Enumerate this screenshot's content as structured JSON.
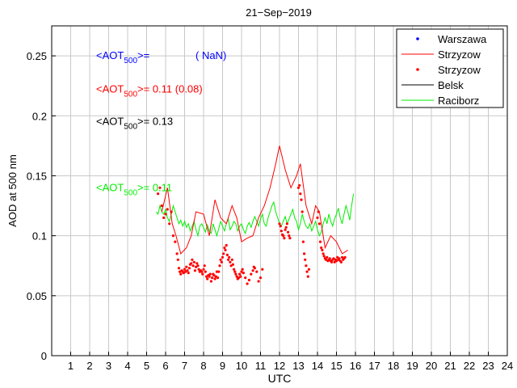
{
  "chart_data": {
    "type": "line",
    "title": "21−Sep−2019",
    "xlabel": "UTC",
    "ylabel": "AOD at 500 nm",
    "xlim": [
      0,
      24
    ],
    "ylim": [
      0,
      0.275
    ],
    "xticks": [
      {
        "value": 1,
        "label": "1"
      },
      {
        "value": 2,
        "label": "2"
      },
      {
        "value": 3,
        "label": "3"
      },
      {
        "value": 4,
        "label": "4"
      },
      {
        "value": 5,
        "label": "5"
      },
      {
        "value": 6,
        "label": "6"
      },
      {
        "value": 7,
        "label": "7"
      },
      {
        "value": 8,
        "label": "8"
      },
      {
        "value": 9,
        "label": "9"
      },
      {
        "value": 10,
        "label": "10"
      },
      {
        "value": 11,
        "label": "11"
      },
      {
        "value": 12,
        "label": "12"
      },
      {
        "value": 13,
        "label": "13"
      },
      {
        "value": 14,
        "label": "14"
      },
      {
        "value": 15,
        "label": "15"
      },
      {
        "value": 16,
        "label": "16"
      },
      {
        "value": 17,
        "label": "17"
      },
      {
        "value": 18,
        "label": "18"
      },
      {
        "value": 19,
        "label": "19"
      },
      {
        "value": 20,
        "label": "20"
      },
      {
        "value": 21,
        "label": "21"
      },
      {
        "value": 22,
        "label": "22"
      },
      {
        "value": 23,
        "label": "23"
      },
      {
        "value": 24,
        "label": "24"
      }
    ],
    "yticks": [
      {
        "value": 0,
        "label": "0"
      },
      {
        "value": 0.05,
        "label": "0.05"
      },
      {
        "value": 0.1,
        "label": "0.1"
      },
      {
        "value": 0.15,
        "label": "0.15"
      },
      {
        "value": 0.2,
        "label": "0.2"
      },
      {
        "value": 0.25,
        "label": "0.25"
      }
    ],
    "grid": true,
    "legend_position": "top-right",
    "annotations": [
      {
        "prefix": "<AOT",
        "sub": "500",
        "suffix": ">= ",
        "value": "( NaN)",
        "color": "#0000ff",
        "y": 0.25
      },
      {
        "prefix": "<AOT",
        "sub": "500",
        "suffix": ">= ",
        "value": "0.11 (0.08)",
        "color": "#ff0000",
        "y": 0.222
      },
      {
        "prefix": "<AOT",
        "sub": "500",
        "suffix": ">= ",
        "value": "0.13",
        "color": "#000000",
        "y": 0.195
      },
      {
        "prefix": "<AOT",
        "sub": "500",
        "suffix": ">= ",
        "value": "0.11",
        "color": "#00ee00",
        "y": 0.14
      }
    ],
    "series": [
      {
        "name": "Warszawa",
        "style": "dots",
        "color": "#0000ff",
        "x": [],
        "y": []
      },
      {
        "name": "Strzyzow",
        "style": "line",
        "color": "#ff0000",
        "x": [
          5.8,
          6.1,
          6.35,
          6.55,
          6.8,
          7.1,
          7.35,
          7.6,
          8.0,
          8.3,
          8.6,
          8.9,
          9.2,
          9.5,
          9.75,
          10.0,
          10.3,
          10.6,
          10.9,
          11.2,
          11.5,
          11.8,
          12.0,
          12.3,
          12.6,
          12.9,
          13.1,
          13.4,
          13.7,
          13.9,
          14.1,
          14.4,
          14.7,
          15.0,
          15.3,
          15.6
        ],
        "y": [
          0.12,
          0.14,
          0.11,
          0.1,
          0.085,
          0.09,
          0.1,
          0.12,
          0.118,
          0.1,
          0.13,
          0.115,
          0.11,
          0.125,
          0.115,
          0.095,
          0.098,
          0.1,
          0.115,
          0.125,
          0.14,
          0.16,
          0.175,
          0.155,
          0.14,
          0.15,
          0.16,
          0.125,
          0.11,
          0.125,
          0.12,
          0.09,
          0.1,
          0.095,
          0.085,
          0.088
        ]
      },
      {
        "name": "Strzyzow",
        "style": "dots",
        "color": "#ff0000",
        "x": [
          5.6,
          5.7,
          5.8,
          5.9,
          6.0,
          6.1,
          6.2,
          6.3,
          6.4,
          6.5,
          6.6,
          6.65,
          6.7,
          6.75,
          6.8,
          6.85,
          6.9,
          6.95,
          7.0,
          7.05,
          7.1,
          7.15,
          7.2,
          7.25,
          7.3,
          7.35,
          7.4,
          7.45,
          7.5,
          7.55,
          7.6,
          7.65,
          7.7,
          7.75,
          7.8,
          7.85,
          7.9,
          7.95,
          8.0,
          8.05,
          8.1,
          8.15,
          8.2,
          8.25,
          8.3,
          8.35,
          8.4,
          8.45,
          8.5,
          8.55,
          8.6,
          8.65,
          8.7,
          8.75,
          8.8,
          8.85,
          8.9,
          8.95,
          9.0,
          9.05,
          9.1,
          9.15,
          9.2,
          9.25,
          9.3,
          9.35,
          9.4,
          9.45,
          9.5,
          9.55,
          9.6,
          9.65,
          9.7,
          9.75,
          9.8,
          9.85,
          9.9,
          9.95,
          10.0,
          10.05,
          10.1,
          10.2,
          10.3,
          10.4,
          10.5,
          10.6,
          10.65,
          10.7,
          10.8,
          10.9,
          11.0,
          11.1,
          12.0,
          12.05,
          12.1,
          12.15,
          12.2,
          12.25,
          12.3,
          12.35,
          12.4,
          12.45,
          12.5,
          12.55,
          13.0,
          13.05,
          13.1,
          13.15,
          13.2,
          13.25,
          13.3,
          13.35,
          13.4,
          13.45,
          13.5,
          13.55,
          14.0,
          14.05,
          14.1,
          14.15,
          14.2,
          14.25,
          14.3,
          14.35,
          14.4,
          14.45,
          14.5,
          14.55,
          14.6,
          14.65,
          14.7,
          14.75,
          14.8,
          14.85,
          14.9,
          14.95,
          15.0,
          15.05,
          15.1,
          15.15,
          15.2,
          15.25,
          15.3,
          15.35,
          15.4,
          15.45
        ],
        "y": [
          0.135,
          0.14,
          0.125,
          0.115,
          0.118,
          0.122,
          0.11,
          0.12,
          0.1,
          0.095,
          0.085,
          0.08,
          0.073,
          0.07,
          0.068,
          0.071,
          0.07,
          0.069,
          0.072,
          0.07,
          0.074,
          0.071,
          0.069,
          0.073,
          0.076,
          0.077,
          0.08,
          0.075,
          0.078,
          0.071,
          0.074,
          0.077,
          0.075,
          0.072,
          0.07,
          0.071,
          0.07,
          0.068,
          0.072,
          0.075,
          0.07,
          0.066,
          0.064,
          0.067,
          0.066,
          0.068,
          0.062,
          0.065,
          0.068,
          0.067,
          0.064,
          0.066,
          0.07,
          0.065,
          0.07,
          0.075,
          0.08,
          0.078,
          0.082,
          0.085,
          0.09,
          0.088,
          0.092,
          0.084,
          0.08,
          0.082,
          0.078,
          0.075,
          0.08,
          0.076,
          0.072,
          0.07,
          0.068,
          0.066,
          0.064,
          0.065,
          0.068,
          0.066,
          0.07,
          0.072,
          0.069,
          0.065,
          0.06,
          0.063,
          0.068,
          0.071,
          0.074,
          0.073,
          0.07,
          0.062,
          0.065,
          0.072,
          0.11,
          0.108,
          0.104,
          0.101,
          0.1,
          0.098,
          0.105,
          0.107,
          0.11,
          0.103,
          0.1,
          0.098,
          0.14,
          0.142,
          0.135,
          0.13,
          0.12,
          0.095,
          0.085,
          0.08,
          0.075,
          0.07,
          0.066,
          0.072,
          0.115,
          0.12,
          0.11,
          0.095,
          0.09,
          0.088,
          0.085,
          0.083,
          0.081,
          0.08,
          0.082,
          0.079,
          0.08,
          0.081,
          0.079,
          0.078,
          0.08,
          0.081,
          0.078,
          0.08,
          0.079,
          0.082,
          0.08,
          0.081,
          0.079,
          0.078,
          0.082,
          0.08,
          0.081,
          0.082
        ]
      },
      {
        "name": "Belsk",
        "style": "line",
        "color": "#000000",
        "x": [],
        "y": []
      },
      {
        "name": "Raciborz",
        "style": "line",
        "color": "#00ee00",
        "x": [
          5.5,
          5.6,
          5.7,
          5.8,
          5.9,
          6.0,
          6.1,
          6.2,
          6.3,
          6.4,
          6.5,
          6.6,
          6.7,
          6.8,
          6.9,
          7.0,
          7.1,
          7.2,
          7.3,
          7.4,
          7.5,
          7.6,
          7.7,
          7.8,
          7.9,
          8.0,
          8.1,
          8.2,
          8.3,
          8.4,
          8.5,
          8.6,
          8.7,
          8.8,
          8.9,
          9.0,
          9.1,
          9.2,
          9.3,
          9.4,
          9.5,
          9.6,
          9.7,
          9.8,
          9.9,
          10.0,
          10.1,
          10.2,
          10.3,
          10.4,
          10.5,
          10.6,
          10.7,
          10.8,
          10.9,
          11.0,
          11.1,
          11.2,
          11.3,
          11.4,
          11.5,
          11.6,
          11.7,
          11.8,
          11.9,
          12.0,
          12.1,
          12.2,
          12.3,
          12.4,
          12.5,
          12.6,
          12.7,
          12.8,
          12.9,
          13.0,
          13.1,
          13.2,
          13.3,
          13.4,
          13.5,
          13.6,
          13.7,
          13.8,
          13.9,
          14.0,
          14.1,
          14.2,
          14.3,
          14.4,
          14.5,
          14.6,
          14.7,
          14.8,
          14.9,
          15.0,
          15.1,
          15.2,
          15.3,
          15.4,
          15.5,
          15.6,
          15.7,
          15.8,
          15.9
        ],
        "y": [
          0.12,
          0.118,
          0.125,
          0.12,
          0.118,
          0.122,
          0.115,
          0.112,
          0.118,
          0.125,
          0.12,
          0.115,
          0.11,
          0.113,
          0.108,
          0.112,
          0.107,
          0.11,
          0.104,
          0.108,
          0.112,
          0.105,
          0.1,
          0.108,
          0.11,
          0.107,
          0.103,
          0.109,
          0.104,
          0.102,
          0.11,
          0.105,
          0.1,
          0.106,
          0.112,
          0.108,
          0.104,
          0.11,
          0.114,
          0.105,
          0.108,
          0.112,
          0.11,
          0.104,
          0.108,
          0.11,
          0.105,
          0.102,
          0.108,
          0.111,
          0.107,
          0.112,
          0.116,
          0.112,
          0.108,
          0.114,
          0.118,
          0.11,
          0.108,
          0.115,
          0.12,
          0.125,
          0.128,
          0.12,
          0.115,
          0.11,
          0.108,
          0.112,
          0.116,
          0.11,
          0.114,
          0.118,
          0.122,
          0.115,
          0.112,
          0.105,
          0.11,
          0.118,
          0.112,
          0.108,
          0.106,
          0.11,
          0.104,
          0.108,
          0.112,
          0.105,
          0.1,
          0.103,
          0.11,
          0.115,
          0.11,
          0.118,
          0.112,
          0.108,
          0.114,
          0.118,
          0.123,
          0.115,
          0.11,
          0.118,
          0.125,
          0.12,
          0.113,
          0.125,
          0.135
        ]
      }
    ]
  }
}
